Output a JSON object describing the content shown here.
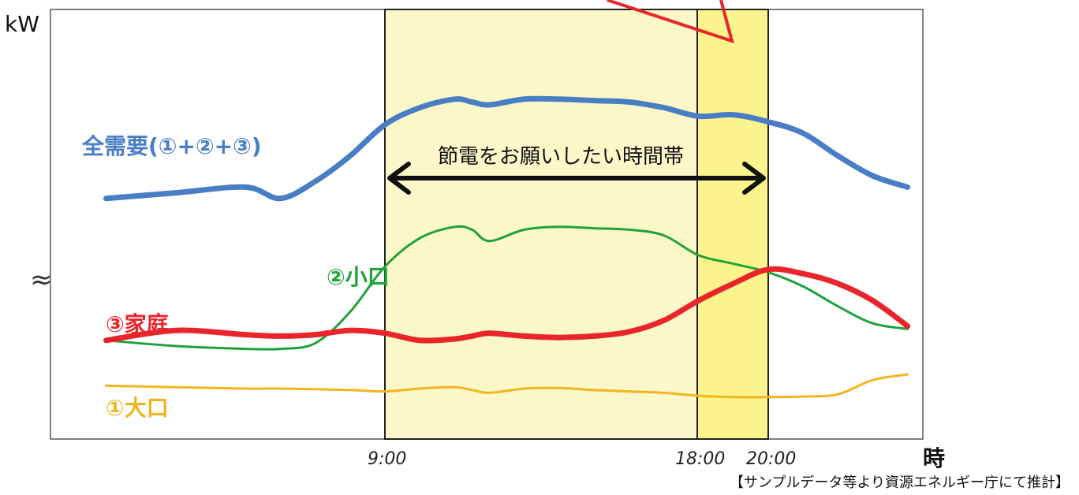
{
  "colors": {
    "total": "#4a7ec4",
    "small": "#1fa23a",
    "household": "#e8252a",
    "large": "#f2b51e",
    "band": "#fbf7c9",
    "band_peak": "#fbf48c",
    "callout": "#e8252a"
  },
  "chart_data": {
    "type": "line",
    "xlabel": "時",
    "ylabel": "kW",
    "x_ticks": [
      "9:00",
      "18:00",
      "20:00"
    ],
    "shaded_ranges": [
      {
        "from": "9:00",
        "to": "20:00",
        "label": "節電をお願いしたい時間帯"
      },
      {
        "from": "18:00",
        "to": "20:00",
        "highlight": true
      }
    ],
    "axis_break": true,
    "series": [
      {
        "key": "total",
        "name": "全需要(①+②+③)",
        "x": [
          1,
          3,
          5,
          6,
          7,
          8,
          9,
          10,
          11,
          11.5,
          12,
          13,
          14,
          15,
          16,
          17,
          18,
          19,
          20,
          21,
          22,
          23,
          24
        ],
        "y": [
          0.62,
          0.64,
          0.66,
          0.62,
          0.68,
          0.77,
          0.88,
          0.94,
          0.97,
          0.96,
          0.95,
          0.97,
          0.97,
          0.965,
          0.96,
          0.94,
          0.91,
          0.915,
          0.89,
          0.85,
          0.77,
          0.7,
          0.66
        ]
      },
      {
        "key": "small",
        "name": "②小口",
        "x": [
          1,
          3,
          5,
          6,
          7,
          8,
          9,
          10,
          11,
          11.5,
          12,
          13,
          14,
          15,
          16,
          17,
          18,
          19,
          20,
          21,
          22,
          23,
          24
        ],
        "y": [
          0.12,
          0.1,
          0.09,
          0.09,
          0.11,
          0.22,
          0.38,
          0.48,
          0.52,
          0.51,
          0.47,
          0.51,
          0.52,
          0.515,
          0.51,
          0.49,
          0.42,
          0.39,
          0.36,
          0.31,
          0.24,
          0.18,
          0.16
        ]
      },
      {
        "key": "household",
        "name": "③家庭",
        "x": [
          1,
          3,
          5,
          6,
          7,
          8,
          9,
          10,
          11,
          11.5,
          12,
          13,
          14,
          15,
          16,
          17,
          18,
          19,
          20,
          21,
          22,
          23,
          24
        ],
        "y": [
          0.12,
          0.155,
          0.14,
          0.135,
          0.14,
          0.155,
          0.145,
          0.12,
          0.125,
          0.135,
          0.145,
          0.135,
          0.13,
          0.135,
          0.15,
          0.19,
          0.26,
          0.32,
          0.37,
          0.355,
          0.32,
          0.26,
          0.17
        ]
      },
      {
        "key": "large",
        "name": "①大口",
        "x": [
          1,
          3,
          5,
          6,
          7,
          8,
          9,
          10,
          11,
          11.5,
          12,
          13,
          14,
          15,
          16,
          17,
          18,
          19,
          20,
          21,
          22,
          23,
          24
        ],
        "y": [
          -0.04,
          -0.045,
          -0.05,
          -0.05,
          -0.052,
          -0.055,
          -0.06,
          -0.05,
          -0.045,
          -0.055,
          -0.065,
          -0.05,
          -0.048,
          -0.055,
          -0.06,
          -0.065,
          -0.075,
          -0.08,
          -0.08,
          -0.078,
          -0.07,
          -0.02,
          0.0
        ]
      }
    ],
    "source_note": "【サンプルデータ等より資源エネルギー庁にて推計】"
  }
}
